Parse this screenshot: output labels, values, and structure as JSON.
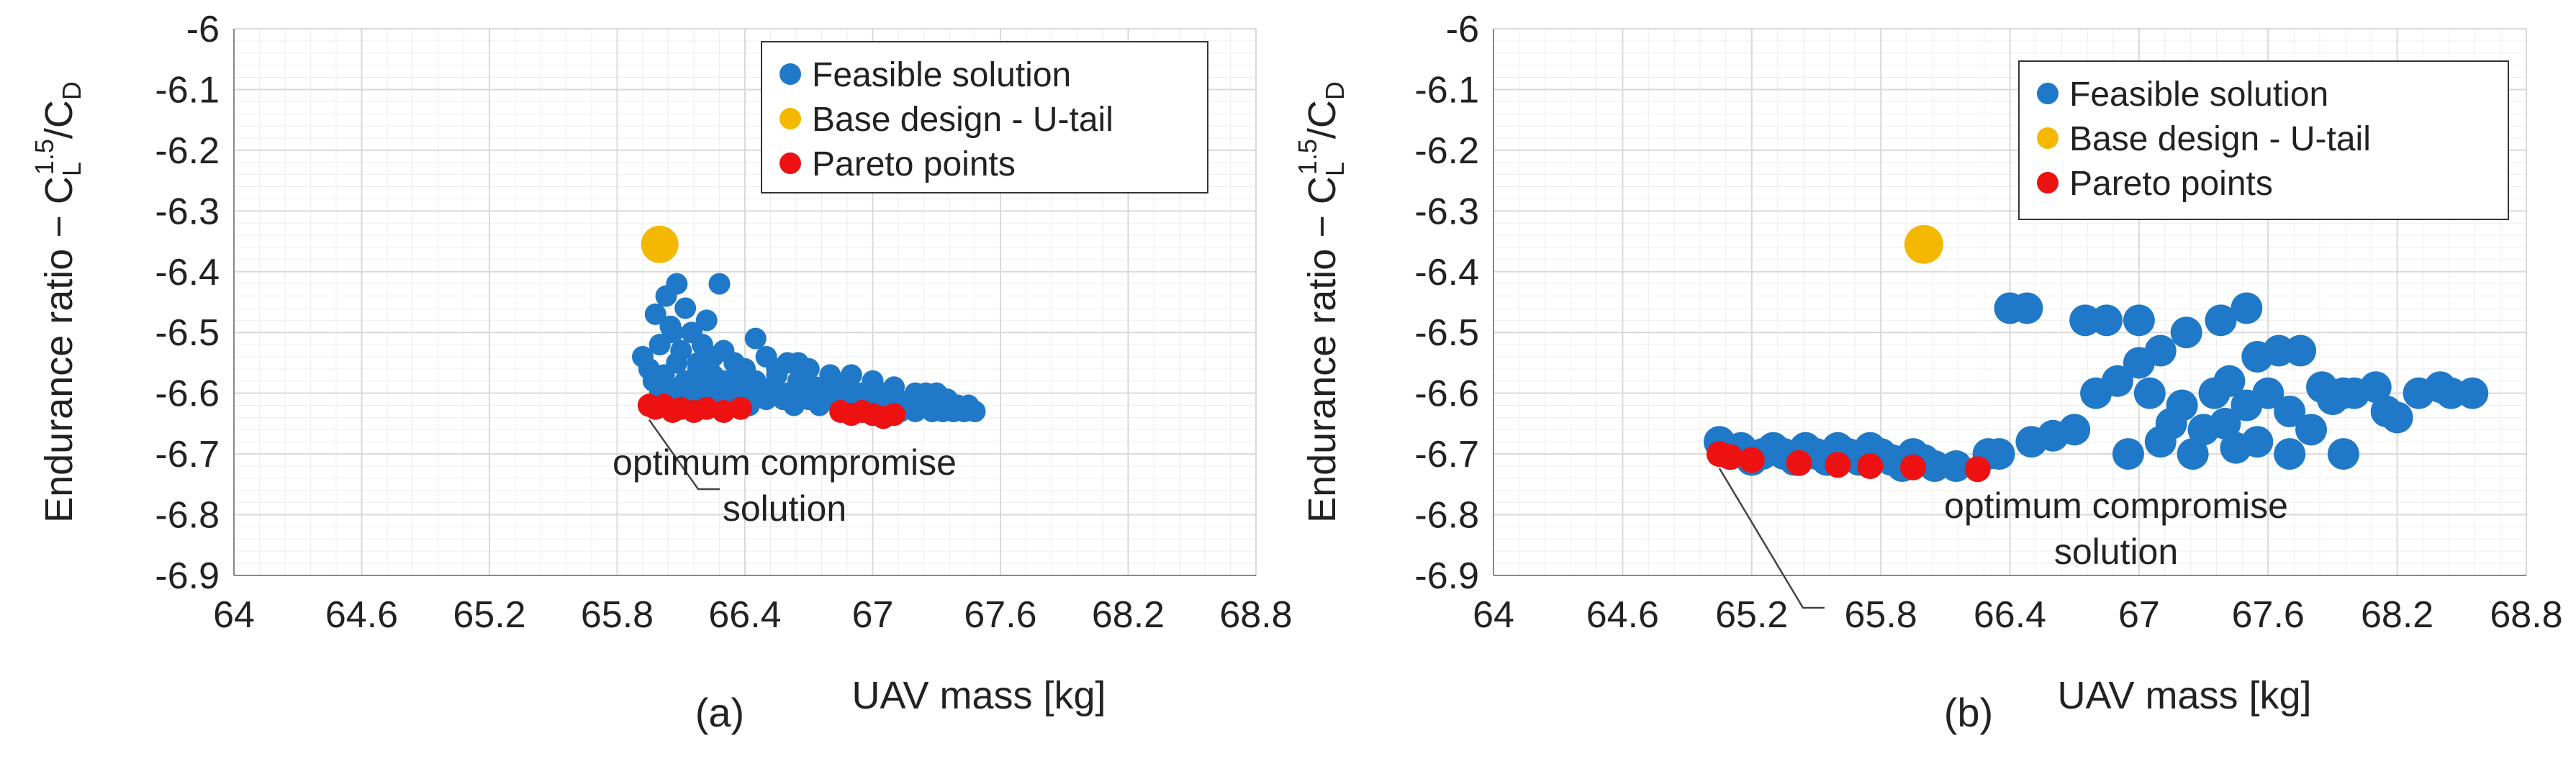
{
  "colors": {
    "feasible": "#1f78c8",
    "base": "#f5b800",
    "pareto": "#ee1111",
    "grid": "#d9d9d9",
    "axis": "#888888"
  },
  "chart_data": [
    {
      "type": "scatter",
      "panel_label": "(a)",
      "xlabel": "UAV mass [kg]",
      "ylabel_text": "Endurance ratio − C",
      "ylabel_sub": "L",
      "ylabel_sup": "1.5",
      "ylabel_tail": "/C",
      "ylabel_tail_sub": "D",
      "xlim": [
        64,
        68.8
      ],
      "ylim": [
        -6.9,
        -6
      ],
      "x_ticks": [
        "64",
        "64.6",
        "65.2",
        "65.8",
        "66.4",
        "67",
        "67.6",
        "68.2",
        "68.8"
      ],
      "y_ticks": [
        "-6",
        "-6.1",
        "-6.2",
        "-6.3",
        "-6.4",
        "-6.5",
        "-6.6",
        "-6.7",
        "-6.8",
        "-6.9"
      ],
      "grid": true,
      "legend_position": "top-right",
      "annotation": "optimum compromise solution",
      "annotation_lines": [
        "optimum compromise",
        "solution"
      ],
      "annotation_target": [
        65.95,
        -6.62
      ],
      "series": [
        {
          "name": "Feasible solution",
          "points": [
            [
              65.92,
              -6.54
            ],
            [
              65.95,
              -6.56
            ],
            [
              65.97,
              -6.58
            ],
            [
              66.0,
              -6.6
            ],
            [
              66.02,
              -6.57
            ],
            [
              66.05,
              -6.59
            ],
            [
              66.08,
              -6.55
            ],
            [
              66.1,
              -6.61
            ],
            [
              66.12,
              -6.58
            ],
            [
              66.15,
              -6.6
            ],
            [
              66.18,
              -6.56
            ],
            [
              66.2,
              -6.59
            ],
            [
              66.22,
              -6.62
            ],
            [
              66.25,
              -6.57
            ],
            [
              66.28,
              -6.6
            ],
            [
              66.3,
              -6.58
            ],
            [
              66.33,
              -6.61
            ],
            [
              66.35,
              -6.59
            ],
            [
              66.38,
              -6.57
            ],
            [
              66.4,
              -6.6
            ],
            [
              66.42,
              -6.62
            ],
            [
              66.45,
              -6.58
            ],
            [
              66.48,
              -6.6
            ],
            [
              66.5,
              -6.61
            ],
            [
              66.53,
              -6.59
            ],
            [
              66.55,
              -6.57
            ],
            [
              66.58,
              -6.61
            ],
            [
              66.6,
              -6.6
            ],
            [
              66.63,
              -6.62
            ],
            [
              66.65,
              -6.58
            ],
            [
              66.68,
              -6.6
            ],
            [
              66.7,
              -6.61
            ],
            [
              66.73,
              -6.59
            ],
            [
              66.75,
              -6.62
            ],
            [
              66.78,
              -6.6
            ],
            [
              66.8,
              -6.61
            ],
            [
              66.83,
              -6.59
            ],
            [
              66.85,
              -6.62
            ],
            [
              66.88,
              -6.6
            ],
            [
              66.9,
              -6.61
            ],
            [
              66.93,
              -6.63
            ],
            [
              66.95,
              -6.6
            ],
            [
              66.98,
              -6.62
            ],
            [
              67.0,
              -6.61
            ],
            [
              67.03,
              -6.63
            ],
            [
              67.05,
              -6.6
            ],
            [
              67.08,
              -6.62
            ],
            [
              67.1,
              -6.61
            ],
            [
              67.13,
              -6.63
            ],
            [
              67.15,
              -6.62
            ],
            [
              67.18,
              -6.61
            ],
            [
              67.2,
              -6.63
            ],
            [
              67.23,
              -6.62
            ],
            [
              67.25,
              -6.6
            ],
            [
              67.28,
              -6.63
            ],
            [
              67.3,
              -6.62
            ],
            [
              67.33,
              -6.63
            ],
            [
              67.35,
              -6.61
            ],
            [
              67.38,
              -6.63
            ],
            [
              67.4,
              -6.62
            ],
            [
              67.43,
              -6.63
            ],
            [
              67.45,
              -6.62
            ],
            [
              67.48,
              -6.63
            ],
            [
              66.0,
              -6.52
            ],
            [
              66.05,
              -6.49
            ],
            [
              66.1,
              -6.53
            ],
            [
              66.15,
              -6.5
            ],
            [
              66.2,
              -6.52
            ],
            [
              66.25,
              -6.54
            ],
            [
              66.3,
              -6.53
            ],
            [
              66.35,
              -6.55
            ],
            [
              66.45,
              -6.51
            ],
            [
              66.5,
              -6.54
            ],
            [
              66.6,
              -6.55
            ],
            [
              66.7,
              -6.56
            ],
            [
              66.8,
              -6.57
            ],
            [
              66.9,
              -6.57
            ],
            [
              65.98,
              -6.47
            ],
            [
              66.03,
              -6.44
            ],
            [
              66.12,
              -6.46
            ],
            [
              66.08,
              -6.42
            ],
            [
              66.22,
              -6.48
            ],
            [
              66.28,
              -6.42
            ],
            [
              66.06,
              -6.5
            ],
            [
              66.18,
              -6.55
            ],
            [
              66.4,
              -6.56
            ],
            [
              66.55,
              -6.56
            ],
            [
              66.65,
              -6.55
            ],
            [
              67.0,
              -6.58
            ],
            [
              67.1,
              -6.59
            ],
            [
              67.2,
              -6.6
            ],
            [
              67.3,
              -6.6
            ]
          ]
        },
        {
          "name": "Base design - U-tail",
          "points": [
            [
              66.0,
              -6.355
            ]
          ]
        },
        {
          "name": "Pareto points",
          "points": [
            [
              65.95,
              -6.62
            ],
            [
              65.98,
              -6.625
            ],
            [
              66.02,
              -6.62
            ],
            [
              66.06,
              -6.63
            ],
            [
              66.1,
              -6.625
            ],
            [
              66.16,
              -6.63
            ],
            [
              66.22,
              -6.625
            ],
            [
              66.3,
              -6.63
            ],
            [
              66.38,
              -6.625
            ],
            [
              66.85,
              -6.63
            ],
            [
              66.9,
              -6.635
            ],
            [
              66.95,
              -6.63
            ],
            [
              67.0,
              -6.635
            ],
            [
              67.05,
              -6.64
            ],
            [
              67.1,
              -6.635
            ]
          ]
        }
      ]
    },
    {
      "type": "scatter",
      "panel_label": "(b)",
      "xlabel": "UAV mass [kg]",
      "ylabel_text": "Endurance ratio − C",
      "ylabel_sub": "L",
      "ylabel_sup": "1.5",
      "ylabel_tail": "/C",
      "ylabel_tail_sub": "D",
      "xlim": [
        64,
        68.8
      ],
      "ylim": [
        -6.9,
        -6
      ],
      "x_ticks": [
        "64",
        "64.6",
        "65.2",
        "65.8",
        "66.4",
        "67",
        "67.6",
        "68.2",
        "68.8"
      ],
      "y_ticks": [
        "-6",
        "-6.1",
        "-6.2",
        "-6.3",
        "-6.4",
        "-6.5",
        "-6.6",
        "-6.7",
        "-6.8",
        "-6.9"
      ],
      "grid": true,
      "legend_position": "top-right",
      "annotation": "optimum compromise solution",
      "annotation_lines": [
        "optimum compromise",
        "solution"
      ],
      "annotation_target": [
        65.05,
        -6.7
      ],
      "series": [
        {
          "name": "Feasible solution",
          "points": [
            [
              65.05,
              -6.68
            ],
            [
              65.1,
              -6.7
            ],
            [
              65.15,
              -6.69
            ],
            [
              65.2,
              -6.71
            ],
            [
              65.25,
              -6.7
            ],
            [
              65.3,
              -6.69
            ],
            [
              65.35,
              -6.7
            ],
            [
              65.4,
              -6.71
            ],
            [
              65.45,
              -6.69
            ],
            [
              65.5,
              -6.7
            ],
            [
              65.55,
              -6.71
            ],
            [
              65.6,
              -6.69
            ],
            [
              65.65,
              -6.7
            ],
            [
              65.7,
              -6.71
            ],
            [
              65.75,
              -6.69
            ],
            [
              65.8,
              -6.7
            ],
            [
              65.85,
              -6.71
            ],
            [
              65.9,
              -6.72
            ],
            [
              65.95,
              -6.7
            ],
            [
              66.0,
              -6.71
            ],
            [
              66.05,
              -6.72
            ],
            [
              66.15,
              -6.72
            ],
            [
              66.3,
              -6.7
            ],
            [
              66.35,
              -6.7
            ],
            [
              66.4,
              -6.46
            ],
            [
              66.48,
              -6.46
            ],
            [
              66.5,
              -6.68
            ],
            [
              66.6,
              -6.67
            ],
            [
              66.7,
              -6.66
            ],
            [
              66.75,
              -6.48
            ],
            [
              66.8,
              -6.6
            ],
            [
              66.85,
              -6.48
            ],
            [
              66.9,
              -6.58
            ],
            [
              66.95,
              -6.7
            ],
            [
              67.0,
              -6.55
            ],
            [
              67.0,
              -6.48
            ],
            [
              67.05,
              -6.6
            ],
            [
              67.1,
              -6.53
            ],
            [
              67.1,
              -6.68
            ],
            [
              67.15,
              -6.65
            ],
            [
              67.2,
              -6.62
            ],
            [
              67.22,
              -6.5
            ],
            [
              67.25,
              -6.7
            ],
            [
              67.3,
              -6.66
            ],
            [
              67.35,
              -6.6
            ],
            [
              67.38,
              -6.48
            ],
            [
              67.4,
              -6.65
            ],
            [
              67.42,
              -6.58
            ],
            [
              67.45,
              -6.69
            ],
            [
              67.5,
              -6.62
            ],
            [
              67.5,
              -6.46
            ],
            [
              67.55,
              -6.54
            ],
            [
              67.55,
              -6.68
            ],
            [
              67.6,
              -6.6
            ],
            [
              67.65,
              -6.53
            ],
            [
              67.7,
              -6.63
            ],
            [
              67.7,
              -6.7
            ],
            [
              67.75,
              -6.53
            ],
            [
              67.8,
              -6.66
            ],
            [
              67.85,
              -6.59
            ],
            [
              67.9,
              -6.61
            ],
            [
              67.95,
              -6.6
            ],
            [
              67.95,
              -6.7
            ],
            [
              68.0,
              -6.6
            ],
            [
              68.1,
              -6.59
            ],
            [
              68.15,
              -6.63
            ],
            [
              68.2,
              -6.64
            ],
            [
              68.3,
              -6.6
            ],
            [
              68.4,
              -6.59
            ],
            [
              68.45,
              -6.6
            ],
            [
              68.55,
              -6.6
            ]
          ]
        },
        {
          "name": "Base design - U-tail",
          "points": [
            [
              66.0,
              -6.355
            ]
          ]
        },
        {
          "name": "Pareto points",
          "points": [
            [
              65.05,
              -6.7
            ],
            [
              65.1,
              -6.705
            ],
            [
              65.2,
              -6.71
            ],
            [
              65.42,
              -6.715
            ],
            [
              65.6,
              -6.718
            ],
            [
              65.75,
              -6.72
            ],
            [
              65.95,
              -6.722
            ],
            [
              66.25,
              -6.725
            ]
          ]
        }
      ]
    }
  ]
}
